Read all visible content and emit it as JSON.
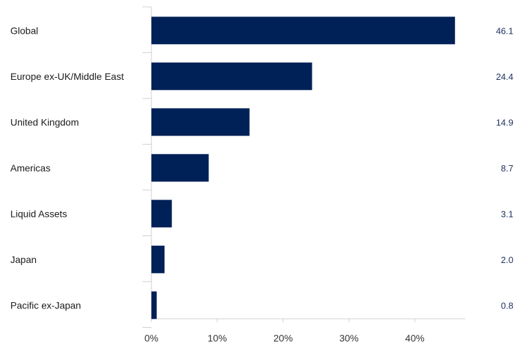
{
  "chart_data": {
    "type": "bar",
    "orientation": "horizontal",
    "categories": [
      "Global",
      "Europe ex-UK/Middle East",
      "United Kingdom",
      "Americas",
      "Liquid Assets",
      "Japan",
      "Pacific ex-Japan"
    ],
    "values": [
      46.1,
      24.4,
      14.9,
      8.7,
      3.1,
      2.0,
      0.8
    ],
    "value_labels": [
      "46.1",
      "24.4",
      "14.9",
      "8.7",
      "3.1",
      "2.0",
      "0.8"
    ],
    "x_ticks": [
      0,
      10,
      20,
      30,
      40
    ],
    "x_tick_labels": [
      "0%",
      "10%",
      "20%",
      "30%",
      "40%"
    ],
    "xlim": [
      0,
      50
    ],
    "title": "",
    "xlabel": "",
    "ylabel": "",
    "grid": false,
    "legend": "none",
    "colors": {
      "bar": "#002157",
      "value_label": "#1b2f5e",
      "axis": "#cfcfcf"
    }
  }
}
